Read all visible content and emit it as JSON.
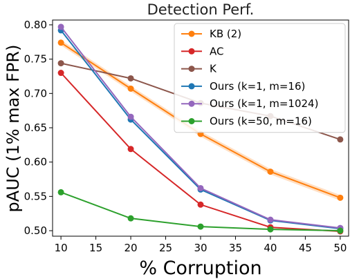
{
  "chart_data": {
    "type": "line",
    "title": "Detection Perf.",
    "xlabel": "% Corruption",
    "ylabel": "pAUC (1% max FPR)",
    "x": [
      10,
      20,
      30,
      40,
      50
    ],
    "xticks": [
      10,
      15,
      20,
      25,
      30,
      35,
      40,
      45,
      50
    ],
    "yticks": [
      0.5,
      0.55,
      0.6,
      0.65,
      0.7,
      0.75,
      0.8
    ],
    "xlim": [
      8.8,
      51.2
    ],
    "ylim": [
      0.492,
      0.807
    ],
    "grid": false,
    "legend_position": "top-right",
    "series": [
      {
        "name": "KB (2)",
        "color": "#ff7f0e",
        "values": [
          0.774,
          0.707,
          0.641,
          0.586,
          0.548
        ],
        "band": true
      },
      {
        "name": "AC",
        "color": "#d62728",
        "values": [
          0.73,
          0.619,
          0.538,
          0.505,
          0.499
        ]
      },
      {
        "name": "K",
        "color": "#8c564b",
        "values": [
          0.744,
          0.722,
          0.686,
          0.667,
          0.633
        ]
      },
      {
        "name": "Ours (k=1, m=16)",
        "color": "#1f77b4",
        "values": [
          0.792,
          0.662,
          0.56,
          0.515,
          0.503
        ]
      },
      {
        "name": "Ours (k=1, m=1024)",
        "color": "#9467bd",
        "values": [
          0.797,
          0.666,
          0.562,
          0.516,
          0.504
        ]
      },
      {
        "name": "Ours (k=50, m=16)",
        "color": "#2ca02c",
        "values": [
          0.556,
          0.518,
          0.506,
          0.502,
          0.5
        ]
      }
    ]
  }
}
